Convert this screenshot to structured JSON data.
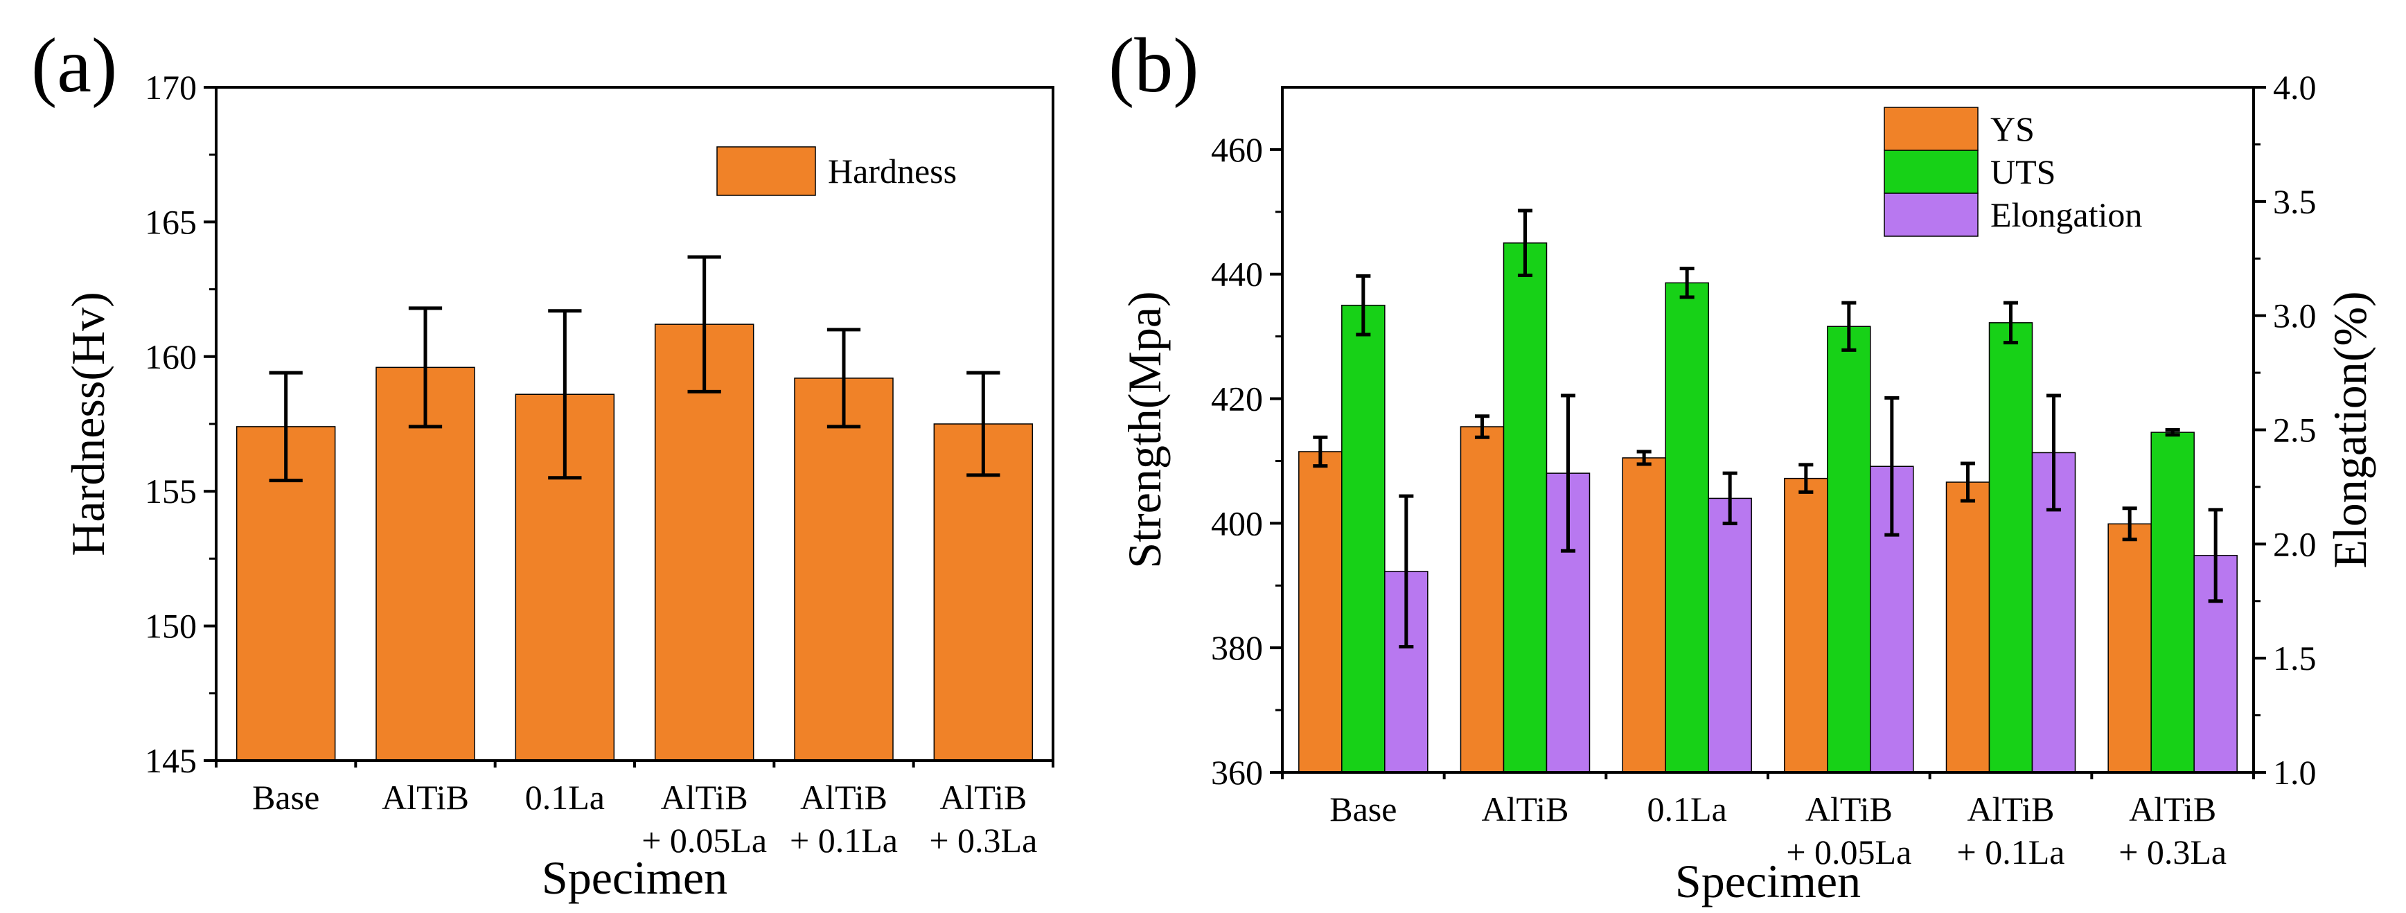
{
  "colors": {
    "ys": "#F08228",
    "uts": "#17D117",
    "elongation": "#B878F0",
    "hardness": "#F08228",
    "axis": "#000000",
    "error": "#000000"
  },
  "chart_data": [
    {
      "panel_label": "(a)",
      "type": "bar",
      "title": "",
      "xlabel": "Specimen",
      "ylabel": "Hardness(Hv)",
      "ylim": [
        145,
        170
      ],
      "yticks": [
        145,
        150,
        155,
        160,
        165,
        170
      ],
      "categories": [
        [
          "Base"
        ],
        [
          "AlTiB"
        ],
        [
          "0.1La"
        ],
        [
          "AlTiB",
          "+ 0.05La"
        ],
        [
          "AlTiB",
          "+ 0.1La"
        ],
        [
          "AlTiB",
          "+ 0.3La"
        ]
      ],
      "series": [
        {
          "name": "Hardness",
          "color": "#F08228",
          "values": [
            157.4,
            159.6,
            158.6,
            161.2,
            159.2,
            157.5
          ],
          "errors": [
            2.0,
            2.2,
            3.1,
            2.5,
            1.8,
            1.9
          ]
        }
      ],
      "legend": "top-right"
    },
    {
      "panel_label": "(b)",
      "type": "bar",
      "title": "",
      "xlabel": "Specimen",
      "ylabel": "Strength(Mpa)",
      "ylabel_right": "Elongation(%)",
      "ylim": [
        360,
        470
      ],
      "yticks": [
        360,
        380,
        400,
        420,
        440,
        460
      ],
      "ylim_right": [
        1.0,
        4.0
      ],
      "yticks_right": [
        "1.0",
        "1.5",
        "2.0",
        "2.5",
        "3.0",
        "3.5",
        "4.0"
      ],
      "categories": [
        [
          "Base"
        ],
        [
          "AlTiB"
        ],
        [
          "0.1La"
        ],
        [
          "AlTiB",
          "+ 0.05La"
        ],
        [
          "AlTiB",
          "+ 0.1La"
        ],
        [
          "AlTiB",
          "+ 0.3La"
        ]
      ],
      "series": [
        {
          "name": "YS",
          "axis": "left",
          "color": "#F08228",
          "values": [
            411.5,
            415.5,
            410.5,
            407.2,
            406.6,
            399.9
          ],
          "errors": [
            2.3,
            1.7,
            1.0,
            2.2,
            3.0,
            2.5
          ]
        },
        {
          "name": "UTS",
          "axis": "left",
          "color": "#17D117",
          "values": [
            435.0,
            445.0,
            438.6,
            431.6,
            432.2,
            414.6
          ],
          "errors": [
            4.7,
            5.2,
            2.3,
            3.8,
            3.2,
            0.4
          ]
        },
        {
          "name": "Elongation",
          "axis": "right",
          "color": "#B878F0",
          "values": [
            1.88,
            2.31,
            2.2,
            2.34,
            2.4,
            1.95
          ],
          "errors": [
            0.33,
            0.34,
            0.11,
            0.3,
            0.25,
            0.2
          ]
        }
      ],
      "legend": "top-right"
    }
  ]
}
